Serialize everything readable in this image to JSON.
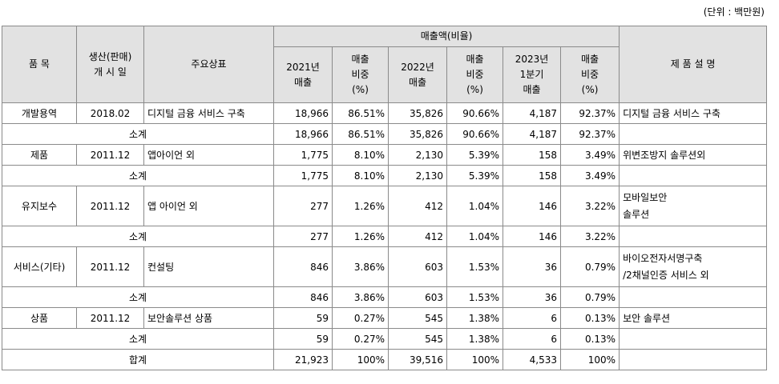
{
  "unit_label": "(단위 : 백만원)",
  "header": {
    "item": "품 목",
    "start_date": [
      "생산(판매)",
      "개 시 일"
    ],
    "brand": "주요상표",
    "sales_group": "매출액(비율)",
    "y2021_sales": [
      "2021년",
      "매출"
    ],
    "y2021_ratio": [
      "매출",
      "비중",
      "(%)"
    ],
    "y2022_sales": [
      "2022년",
      "매출"
    ],
    "y2022_ratio": [
      "매출",
      "비중",
      "(%)"
    ],
    "q1_2023_sales": [
      "2023년",
      "1분기",
      "매출"
    ],
    "q1_2023_ratio": [
      "매출",
      "비중",
      "(%)"
    ],
    "description": "제 품 설 명"
  },
  "rows": [
    {
      "item": "개발용역",
      "date": "2018.02",
      "brand": "디지털 금융 서비스 구축",
      "s2021": "18,966",
      "r2021": "86.51%",
      "s2022": "35,826",
      "r2022": "90.66%",
      "s2023": "4,187",
      "r2023": "92.37%",
      "desc": [
        "디지털 금융 서비스 구축"
      ]
    },
    {
      "subtotal": "소계",
      "s2021": "18,966",
      "r2021": "86.51%",
      "s2022": "35,826",
      "r2022": "90.66%",
      "s2023": "4,187",
      "r2023": "92.37%"
    },
    {
      "item": "제품",
      "date": "2011.12",
      "brand": "앱아이언 외",
      "s2021": "1,775",
      "r2021": "8.10%",
      "s2022": "2,130",
      "r2022": "5.39%",
      "s2023": "158",
      "r2023": "3.49%",
      "desc": [
        "위변조방지 솔루션외"
      ]
    },
    {
      "subtotal": "소계",
      "s2021": "1,775",
      "r2021": "8.10%",
      "s2022": "2,130",
      "r2022": "5.39%",
      "s2023": "158",
      "r2023": "3.49%"
    },
    {
      "item": "유지보수",
      "date": "2011.12",
      "brand": "앱 아이언 외",
      "s2021": "277",
      "r2021": "1.26%",
      "s2022": "412",
      "r2022": "1.04%",
      "s2023": "146",
      "r2023": "3.22%",
      "desc": [
        "모바일보안",
        "솔루션"
      ]
    },
    {
      "subtotal": "소계",
      "s2021": "277",
      "r2021": "1.26%",
      "s2022": "412",
      "r2022": "1.04%",
      "s2023": "146",
      "r2023": "3.22%"
    },
    {
      "item": "서비스(기타)",
      "date": "2011.12",
      "brand": "컨설팅",
      "s2021": "846",
      "r2021": "3.86%",
      "s2022": "603",
      "r2022": "1.53%",
      "s2023": "36",
      "r2023": "0.79%",
      "desc": [
        "바이오전자서명구축",
        "/2채널인증 서비스 외"
      ]
    },
    {
      "subtotal": "소계",
      "s2021": "846",
      "r2021": "3.86%",
      "s2022": "603",
      "r2022": "1.53%",
      "s2023": "36",
      "r2023": "0.79%"
    },
    {
      "item": "상품",
      "date": "2011.12",
      "brand": "보안솔루션 상품",
      "s2021": "59",
      "r2021": "0.27%",
      "s2022": "545",
      "r2022": "1.38%",
      "s2023": "6",
      "r2023": "0.13%",
      "desc": [
        "보안 솔루션"
      ]
    },
    {
      "subtotal": "소계",
      "s2021": "59",
      "r2021": "0.27%",
      "s2022": "545",
      "r2022": "1.38%",
      "s2023": "6",
      "r2023": "0.13%"
    },
    {
      "subtotal": "합계",
      "s2021": "21,923",
      "r2021": "100%",
      "s2022": "39,516",
      "r2022": "100%",
      "s2023": "4,533",
      "r2023": "100%"
    }
  ]
}
